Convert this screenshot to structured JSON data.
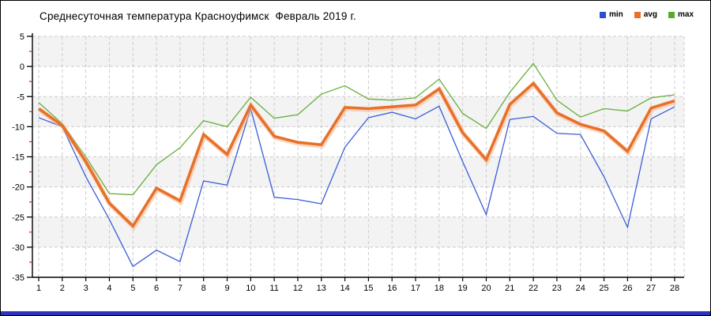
{
  "page": {
    "title": "Среднесуточная температура Красноуфимск  Февраль 2019 г."
  },
  "legend": {
    "position": "top-right",
    "items": [
      {
        "label": "min",
        "color": "#2f4cd9"
      },
      {
        "label": "avg",
        "color": "#e8702a"
      },
      {
        "label": "max",
        "color": "#52ad2d"
      }
    ]
  },
  "chart_data": {
    "type": "line",
    "title": "Среднесуточная температура Красноуфимск  Февраль 2019 г.",
    "xlabel": "",
    "ylabel": "",
    "x": [
      1,
      2,
      3,
      4,
      5,
      6,
      7,
      8,
      9,
      10,
      11,
      12,
      13,
      14,
      15,
      16,
      17,
      18,
      19,
      20,
      21,
      22,
      23,
      24,
      25,
      26,
      27,
      28
    ],
    "ylim": [
      -35,
      5
    ],
    "ytick_step": 5,
    "yticks": [
      5,
      0,
      -5,
      -10,
      -15,
      -20,
      -25,
      -30,
      -35
    ],
    "grid": true,
    "grid_style": "dashed",
    "alternating_bands": true,
    "legend_position": "top-right",
    "series": [
      {
        "name": "min",
        "color": "#3b5ed7",
        "width": 1.3,
        "values": [
          -8.5,
          -10,
          -18.3,
          -25.4,
          -33.2,
          -30.5,
          -32.4,
          -19,
          -19.7,
          -7,
          -21.7,
          -22.1,
          -22.8,
          -13.4,
          -8.5,
          -7.6,
          -8.7,
          -6.6,
          -15.8,
          -24.6,
          -8.8,
          -8.3,
          -11.1,
          -11.3,
          -18.3,
          -26.7,
          -8.7,
          -6.7
        ]
      },
      {
        "name": "avg",
        "color": "#e8702a",
        "width": 3.6,
        "halo": "#f6b88e",
        "values": [
          -7,
          -9.8,
          -15.8,
          -22.7,
          -26.5,
          -20.2,
          -22.3,
          -11.3,
          -14.6,
          -6.4,
          -11.6,
          -12.6,
          -13,
          -6.8,
          -7,
          -6.7,
          -6.4,
          -3.7,
          -11,
          -15.5,
          -6.3,
          -2.8,
          -7.7,
          -9.6,
          -10.7,
          -14.1,
          -6.9,
          -5.7
        ]
      },
      {
        "name": "max",
        "color": "#67ad3c",
        "width": 1.3,
        "values": [
          -6,
          -9.5,
          -15,
          -21.1,
          -21.3,
          -16.3,
          -13.5,
          -9,
          -10,
          -5.1,
          -8.6,
          -8,
          -4.6,
          -3.2,
          -5.4,
          -5.6,
          -5.2,
          -2.1,
          -7.8,
          -10.3,
          -4.3,
          0.5,
          -5.6,
          -8.4,
          -7,
          -7.4,
          -5.2,
          -4.7
        ]
      }
    ]
  },
  "colors": {
    "background": "#ffffff",
    "band": "#f3f3f3",
    "grid": "#cccccc",
    "axis": "#000000",
    "minor_tick": "#d22c1a",
    "bottom_bar": "#2a34bd"
  }
}
